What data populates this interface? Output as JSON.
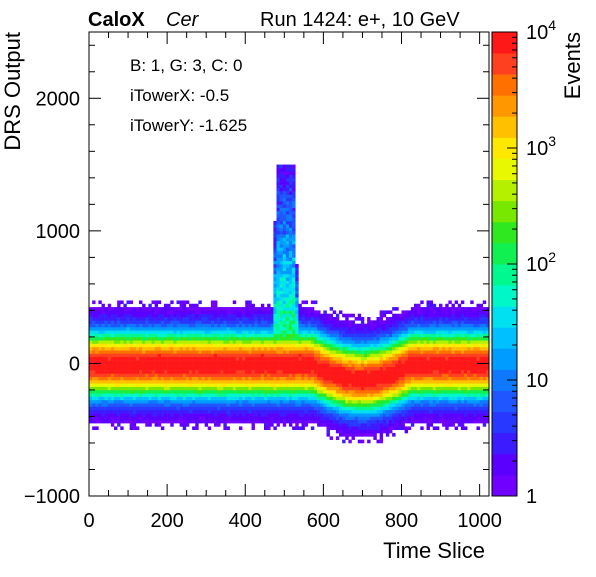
{
  "header": {
    "brand": "CaloX",
    "channel": "Cer",
    "run": "Run 1424: e+, 10 GeV"
  },
  "annotations": {
    "board": "B: 1, G: 3, C: 0",
    "tower_x": "iTowerX: -0.5",
    "tower_y": "iTowerY: -1.625"
  },
  "chart_data": {
    "type": "heatmap",
    "title": "",
    "xlabel": "Time Slice",
    "ylabel": "DRS Output",
    "zlabel": "Events",
    "xlim": [
      0,
      1024
    ],
    "ylim": [
      -1000,
      2500
    ],
    "zlim": [
      1,
      10000
    ],
    "z_scale": "log",
    "x_ticks": [
      "0",
      "200",
      "400",
      "600",
      "800",
      "1000"
    ],
    "x_tick_values": [
      0,
      200,
      400,
      600,
      800,
      1000
    ],
    "y_ticks": [
      "−1000",
      "0",
      "1000",
      "2000"
    ],
    "y_tick_values": [
      -1000,
      0,
      1000,
      2000
    ],
    "z_ticks": [
      {
        "value": 1,
        "base": "1",
        "exp": ""
      },
      {
        "value": 10,
        "base": "10",
        "exp": ""
      },
      {
        "value": 100,
        "base": "10",
        "exp": "2"
      },
      {
        "value": 1000,
        "base": "10",
        "exp": "3"
      },
      {
        "value": 10000,
        "base": "10",
        "exp": "4"
      }
    ],
    "palette": [
      "#7000ff",
      "#5a00ff",
      "#3c1cff",
      "#2838ff",
      "#1f56ff",
      "#0e78ff",
      "#009cff",
      "#00c0ff",
      "#00e0f0",
      "#00f8c8",
      "#00f890",
      "#10f050",
      "#30e820",
      "#78e800",
      "#b4f000",
      "#e8f800",
      "#ffe800",
      "#ffc000",
      "#ff9800",
      "#ff7000",
      "#ff4020",
      "#ff1818"
    ],
    "grid": false,
    "legend": "color-bar-right",
    "pedestal": {
      "center": -10,
      "halfwidth": 430
    },
    "pulse": {
      "x_start": 470,
      "x_end": 535,
      "peak": 1510
    },
    "undershoot": {
      "x_start": 570,
      "x_end": 980,
      "depth": -110
    }
  },
  "colors": {
    "frame": "#000000",
    "background": "#ffffff"
  }
}
